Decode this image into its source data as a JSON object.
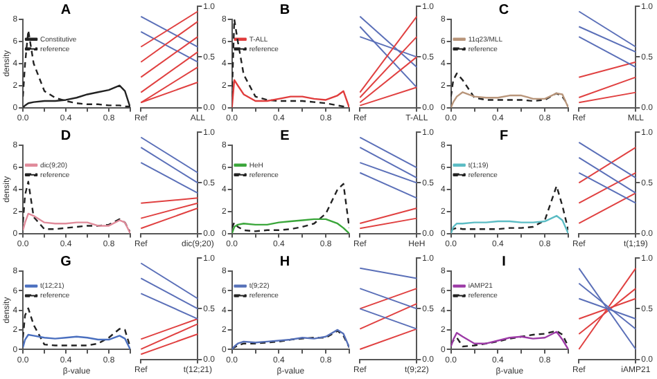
{
  "chart_data": [
    {
      "type": "line",
      "title": "A",
      "ylabel": "density",
      "x": [
        0,
        0.02,
        0.05,
        0.1,
        0.2,
        0.3,
        0.4,
        0.5,
        0.6,
        0.7,
        0.8,
        0.9,
        0.95,
        1
      ],
      "xlim": [
        0,
        1
      ],
      "xticks": [
        {
          "value": 0,
          "label": "0.0"
        },
        {
          "value": 0.2,
          "label": null
        },
        {
          "value": 0.4,
          "label": "0.4"
        },
        {
          "value": 0.6,
          "label": null
        },
        {
          "value": 0.8,
          "label": "0.8"
        },
        {
          "value": 1,
          "label": null
        }
      ],
      "ylim": [
        0,
        8
      ],
      "yticks": [
        0,
        2,
        4,
        6,
        8
      ],
      "grid": false,
      "legend": "top",
      "series": [
        {
          "name": "Constitutive",
          "color": "#222222",
          "line_style": "solid",
          "values": [
            0,
            0.2,
            0.4,
            0.5,
            0.6,
            0.6,
            0.7,
            0.9,
            1.2,
            1.4,
            1.6,
            2.0,
            1.5,
            0
          ]
        },
        {
          "name": "reference",
          "color": "#222222",
          "line_style": "dashed",
          "values": [
            1,
            4,
            7,
            4,
            1.5,
            0.9,
            0.6,
            0.4,
            0.3,
            0.3,
            0.2,
            0.2,
            0.1,
            0.1
          ]
        }
      ]
    },
    {
      "type": "line",
      "categories": [
        "Ref",
        "ALL"
      ],
      "y2lim": [
        0,
        1
      ],
      "y2ticks": [
        {
          "value": 0,
          "label": "0.0"
        },
        {
          "value": 0.5,
          "label": "0.5"
        },
        {
          "value": 1,
          "label": "1.0"
        }
      ],
      "grid": false,
      "series": [
        {
          "color": "#e04040",
          "axis": "y2",
          "values": [
            0.05,
            0.4
          ]
        },
        {
          "color": "#e04040",
          "axis": "y2",
          "values": [
            0.15,
            0.55
          ]
        },
        {
          "color": "#e04040",
          "axis": "y2",
          "values": [
            0.3,
            0.7
          ]
        },
        {
          "color": "#e04040",
          "axis": "y2",
          "values": [
            0.45,
            0.85
          ]
        },
        {
          "color": "#e04040",
          "axis": "y2",
          "values": [
            0.6,
            0.95
          ]
        },
        {
          "color": "#e04040",
          "axis": "y2",
          "values": [
            0.05,
            0.25
          ]
        },
        {
          "color": "#5a6fb8",
          "axis": "y2",
          "values": [
            0.9,
            0.6
          ]
        },
        {
          "color": "#5a6fb8",
          "axis": "y2",
          "values": [
            0.75,
            0.45
          ]
        }
      ]
    },
    {
      "type": "line",
      "title": "B",
      "x": [
        0,
        0.02,
        0.05,
        0.1,
        0.2,
        0.3,
        0.4,
        0.5,
        0.6,
        0.7,
        0.8,
        0.9,
        0.95,
        1
      ],
      "xlim": [
        0,
        1
      ],
      "xticks": [
        {
          "value": 0,
          "label": "0.0"
        },
        {
          "value": 0.2,
          "label": null
        },
        {
          "value": 0.4,
          "label": "0.4"
        },
        {
          "value": 0.6,
          "label": null
        },
        {
          "value": 0.8,
          "label": "0.8"
        },
        {
          "value": 1,
          "label": null
        }
      ],
      "ylim": [
        0,
        8
      ],
      "yticks": [
        0,
        2,
        4,
        6,
        8
      ],
      "grid": false,
      "legend": "top",
      "series": [
        {
          "name": "T-ALL",
          "color": "#e03c3c",
          "line_style": "solid",
          "values": [
            0,
            2.5,
            2.0,
            1.2,
            0.6,
            0.6,
            0.8,
            1.0,
            1.0,
            0.8,
            0.7,
            1.1,
            1.5,
            0
          ]
        },
        {
          "name": "reference",
          "color": "#222222",
          "line_style": "dashed",
          "values": [
            1,
            8,
            6,
            3,
            1,
            0.7,
            0.6,
            0.6,
            0.6,
            0.5,
            0.4,
            0.2,
            0.1,
            0.1
          ]
        }
      ]
    },
    {
      "type": "line",
      "categories": [
        "Ref",
        "T-ALL"
      ],
      "y2lim": [
        0,
        1
      ],
      "y2ticks": [
        {
          "value": 0,
          "label": "0.0"
        },
        {
          "value": 0.5,
          "label": "0.5"
        },
        {
          "value": 1,
          "label": "1.0"
        }
      ],
      "grid": false,
      "series": [
        {
          "color": "#e04040",
          "axis": "y2",
          "values": [
            0.05,
            0.5
          ]
        },
        {
          "color": "#e04040",
          "axis": "y2",
          "values": [
            0.1,
            0.7
          ]
        },
        {
          "color": "#e04040",
          "axis": "y2",
          "values": [
            0.15,
            0.9
          ]
        },
        {
          "color": "#e04040",
          "axis": "y2",
          "values": [
            0.02,
            0.2
          ]
        },
        {
          "color": "#5a6fb8",
          "axis": "y2",
          "values": [
            0.9,
            0.4
          ]
        },
        {
          "color": "#5a6fb8",
          "axis": "y2",
          "values": [
            0.8,
            0.2
          ]
        },
        {
          "color": "#5a6fb8",
          "axis": "y2",
          "values": [
            0.7,
            0.5
          ]
        }
      ]
    },
    {
      "type": "line",
      "title": "C",
      "x": [
        0,
        0.02,
        0.05,
        0.1,
        0.2,
        0.3,
        0.4,
        0.5,
        0.6,
        0.7,
        0.8,
        0.9,
        0.95,
        1
      ],
      "xlim": [
        0,
        1
      ],
      "xticks": [
        {
          "value": 0,
          "label": "0.0"
        },
        {
          "value": 0.2,
          "label": null
        },
        {
          "value": 0.4,
          "label": "0.4"
        },
        {
          "value": 0.6,
          "label": null
        },
        {
          "value": 0.8,
          "label": "0.8"
        },
        {
          "value": 1,
          "label": null
        }
      ],
      "ylim": [
        0,
        8
      ],
      "yticks": [
        0,
        2,
        4,
        6,
        8
      ],
      "grid": false,
      "legend": "top",
      "series": [
        {
          "name": "11q23/MLL",
          "color": "#b8957a",
          "line_style": "solid",
          "values": [
            0,
            0.5,
            1.0,
            1.4,
            1.0,
            0.9,
            0.9,
            1.1,
            1.1,
            0.8,
            0.8,
            1.3,
            1.2,
            0
          ]
        },
        {
          "name": "reference",
          "color": "#222222",
          "line_style": "dashed",
          "values": [
            1,
            2.5,
            3.1,
            2.5,
            0.9,
            0.7,
            0.7,
            0.7,
            0.7,
            0.6,
            0.7,
            1.3,
            1.0,
            0.2
          ]
        }
      ]
    },
    {
      "type": "line",
      "categories": [
        "Ref",
        "MLL"
      ],
      "y2lim": [
        0,
        1
      ],
      "y2ticks": [
        {
          "value": 0,
          "label": "0.0"
        },
        {
          "value": 0.5,
          "label": "0.5"
        },
        {
          "value": 1,
          "label": "1.0"
        }
      ],
      "grid": false,
      "series": [
        {
          "color": "#5a6fb8",
          "axis": "y2",
          "values": [
            0.95,
            0.6
          ]
        },
        {
          "color": "#5a6fb8",
          "axis": "y2",
          "values": [
            0.8,
            0.55
          ]
        },
        {
          "color": "#5a6fb8",
          "axis": "y2",
          "values": [
            0.7,
            0.4
          ]
        },
        {
          "color": "#e04040",
          "axis": "y2",
          "values": [
            0.05,
            0.15
          ]
        },
        {
          "color": "#e04040",
          "axis": "y2",
          "values": [
            0.1,
            0.3
          ]
        },
        {
          "color": "#e04040",
          "axis": "y2",
          "values": [
            0.3,
            0.45
          ]
        }
      ]
    },
    {
      "type": "line",
      "title": "D",
      "ylabel": "density",
      "x": [
        0,
        0.02,
        0.05,
        0.1,
        0.2,
        0.3,
        0.4,
        0.5,
        0.6,
        0.7,
        0.8,
        0.9,
        0.95,
        1
      ],
      "xlim": [
        0,
        1
      ],
      "xticks": [
        {
          "value": 0,
          "label": "0.0"
        },
        {
          "value": 0.2,
          "label": null
        },
        {
          "value": 0.4,
          "label": "0.4"
        },
        {
          "value": 0.6,
          "label": null
        },
        {
          "value": 0.8,
          "label": "0.8"
        },
        {
          "value": 1,
          "label": null
        }
      ],
      "ylim": [
        0,
        8
      ],
      "yticks": [
        0,
        2,
        4,
        6,
        8
      ],
      "grid": false,
      "legend": "top",
      "series": [
        {
          "name": "dic(9;20)",
          "color": "#e08a9a",
          "line_style": "solid",
          "values": [
            0.3,
            1.0,
            1.8,
            1.6,
            1.0,
            0.9,
            0.9,
            1.0,
            1.0,
            0.7,
            0.7,
            1.2,
            1.0,
            0
          ]
        },
        {
          "name": "reference",
          "color": "#222222",
          "line_style": "dashed",
          "values": [
            1,
            3.5,
            4.7,
            1.5,
            0.4,
            0.4,
            0.5,
            0.6,
            0.7,
            0.7,
            0.8,
            1.3,
            1.0,
            0.1
          ]
        }
      ]
    },
    {
      "type": "line",
      "categories": [
        "Ref",
        "dic(9;20)"
      ],
      "y2lim": [
        0,
        1
      ],
      "y2ticks": [
        {
          "value": 0,
          "label": "0.0"
        },
        {
          "value": 0.5,
          "label": "0.5"
        },
        {
          "value": 1,
          "label": "1.0"
        }
      ],
      "grid": false,
      "series": [
        {
          "color": "#5a6fb8",
          "axis": "y2",
          "values": [
            0.95,
            0.6
          ]
        },
        {
          "color": "#5a6fb8",
          "axis": "y2",
          "values": [
            0.85,
            0.5
          ]
        },
        {
          "color": "#5a6fb8",
          "axis": "y2",
          "values": [
            0.7,
            0.4
          ]
        },
        {
          "color": "#e04040",
          "axis": "y2",
          "values": [
            0.05,
            0.25
          ]
        },
        {
          "color": "#e04040",
          "axis": "y2",
          "values": [
            0.15,
            0.3
          ]
        },
        {
          "color": "#e04040",
          "axis": "y2",
          "values": [
            0.3,
            0.35
          ]
        }
      ]
    },
    {
      "type": "line",
      "title": "E",
      "x": [
        0,
        0.02,
        0.05,
        0.1,
        0.2,
        0.3,
        0.4,
        0.5,
        0.6,
        0.7,
        0.8,
        0.9,
        0.95,
        1
      ],
      "xlim": [
        0,
        1
      ],
      "xticks": [
        {
          "value": 0,
          "label": "0.0"
        },
        {
          "value": 0.2,
          "label": null
        },
        {
          "value": 0.4,
          "label": "0.4"
        },
        {
          "value": 0.6,
          "label": null
        },
        {
          "value": 0.8,
          "label": "0.8"
        },
        {
          "value": 1,
          "label": null
        }
      ],
      "ylim": [
        0,
        8
      ],
      "yticks": [
        0,
        2,
        4,
        6,
        8
      ],
      "grid": false,
      "legend": "top",
      "series": [
        {
          "name": "HeH",
          "color": "#3aa63a",
          "line_style": "solid",
          "values": [
            0,
            0.6,
            0.8,
            0.9,
            0.8,
            0.8,
            1.0,
            1.1,
            1.2,
            1.3,
            1.3,
            0.9,
            0.5,
            0
          ]
        },
        {
          "name": "reference",
          "color": "#222222",
          "line_style": "dashed",
          "values": [
            0.5,
            1.0,
            0.6,
            0.3,
            0.2,
            0.3,
            0.3,
            0.4,
            0.6,
            0.9,
            1.8,
            4.0,
            4.5,
            0.5
          ]
        }
      ]
    },
    {
      "type": "line",
      "categories": [
        "Ref",
        "HeH"
      ],
      "y2lim": [
        0,
        1
      ],
      "y2ticks": [
        {
          "value": 0,
          "label": "0.0"
        },
        {
          "value": 0.5,
          "label": "0.5"
        },
        {
          "value": 1,
          "label": "1.0"
        }
      ],
      "grid": false,
      "series": [
        {
          "color": "#5a6fb8",
          "axis": "y2",
          "values": [
            0.95,
            0.65
          ]
        },
        {
          "color": "#5a6fb8",
          "axis": "y2",
          "values": [
            0.85,
            0.55
          ]
        },
        {
          "color": "#5a6fb8",
          "axis": "y2",
          "values": [
            0.7,
            0.5
          ]
        },
        {
          "color": "#5a6fb8",
          "axis": "y2",
          "values": [
            0.6,
            0.35
          ]
        },
        {
          "color": "#e04040",
          "axis": "y2",
          "values": [
            0.05,
            0.15
          ]
        },
        {
          "color": "#e04040",
          "axis": "y2",
          "values": [
            0.1,
            0.25
          ]
        }
      ]
    },
    {
      "type": "line",
      "title": "F",
      "x": [
        0,
        0.02,
        0.05,
        0.1,
        0.2,
        0.3,
        0.4,
        0.5,
        0.6,
        0.7,
        0.8,
        0.9,
        0.95,
        1
      ],
      "xlim": [
        0,
        1
      ],
      "xticks": [
        {
          "value": 0,
          "label": "0.0"
        },
        {
          "value": 0.2,
          "label": null
        },
        {
          "value": 0.4,
          "label": "0.4"
        },
        {
          "value": 0.6,
          "label": null
        },
        {
          "value": 0.8,
          "label": "0.8"
        },
        {
          "value": 1,
          "label": null
        }
      ],
      "ylim": [
        0,
        8
      ],
      "yticks": [
        0,
        2,
        4,
        6,
        8
      ],
      "grid": false,
      "legend": "top",
      "series": [
        {
          "name": "t(1;19)",
          "color": "#5bbcc4",
          "line_style": "solid",
          "values": [
            0,
            0.6,
            0.9,
            0.9,
            1.0,
            1.0,
            1.1,
            1.1,
            1.0,
            1.0,
            1.1,
            1.6,
            1.2,
            0
          ]
        },
        {
          "name": "reference",
          "color": "#222222",
          "line_style": "dashed",
          "values": [
            0.3,
            0.4,
            0.5,
            0.4,
            0.4,
            0.4,
            0.4,
            0.5,
            0.5,
            0.6,
            1.2,
            4.3,
            2.5,
            0.3
          ]
        }
      ]
    },
    {
      "type": "line",
      "categories": [
        "Ref",
        "t(1;19)"
      ],
      "y2lim": [
        0,
        1
      ],
      "y2ticks": [
        {
          "value": 0,
          "label": "0.0"
        },
        {
          "value": 0.5,
          "label": "0.5"
        },
        {
          "value": 1,
          "label": "1.0"
        }
      ],
      "grid": false,
      "series": [
        {
          "color": "#5a6fb8",
          "axis": "y2",
          "values": [
            0.9,
            0.55
          ]
        },
        {
          "color": "#5a6fb8",
          "axis": "y2",
          "values": [
            0.75,
            0.4
          ]
        },
        {
          "color": "#5a6fb8",
          "axis": "y2",
          "values": [
            0.6,
            0.3
          ]
        },
        {
          "color": "#e04040",
          "axis": "y2",
          "values": [
            0.1,
            0.4
          ]
        },
        {
          "color": "#e04040",
          "axis": "y2",
          "values": [
            0.3,
            0.6
          ]
        },
        {
          "color": "#e04040",
          "axis": "y2",
          "values": [
            0.5,
            0.85
          ]
        }
      ]
    },
    {
      "type": "line",
      "title": "G",
      "ylabel": "density",
      "xlabel": "β-value",
      "x": [
        0,
        0.02,
        0.05,
        0.1,
        0.2,
        0.3,
        0.4,
        0.5,
        0.6,
        0.7,
        0.8,
        0.9,
        0.95,
        1
      ],
      "xlim": [
        0,
        1
      ],
      "xticks": [
        {
          "value": 0,
          "label": "0.0"
        },
        {
          "value": 0.2,
          "label": null
        },
        {
          "value": 0.4,
          "label": "0.4"
        },
        {
          "value": 0.6,
          "label": null
        },
        {
          "value": 0.8,
          "label": "0.8"
        },
        {
          "value": 1,
          "label": null
        }
      ],
      "ylim": [
        0,
        8
      ],
      "yticks": [
        0,
        2,
        4,
        6,
        8
      ],
      "grid": false,
      "legend": "top",
      "series": [
        {
          "name": "t(12;21)",
          "color": "#4a6fbf",
          "line_style": "solid",
          "values": [
            0.2,
            1.0,
            1.5,
            1.4,
            1.2,
            1.1,
            1.2,
            1.3,
            1.2,
            1.0,
            1.0,
            1.4,
            1.1,
            0
          ]
        },
        {
          "name": "reference",
          "color": "#222222",
          "line_style": "dashed",
          "values": [
            1.2,
            3.5,
            4.2,
            2.5,
            0.5,
            0.4,
            0.4,
            0.4,
            0.4,
            0.6,
            1.2,
            2.1,
            2.0,
            0.2
          ]
        }
      ]
    },
    {
      "type": "line",
      "categories": [
        "Ref",
        "t(12;21)"
      ],
      "y2lim": [
        0,
        1
      ],
      "y2ticks": [
        {
          "value": 0,
          "label": "0.0"
        },
        {
          "value": 0.5,
          "label": "0.5"
        },
        {
          "value": 1,
          "label": "1.0"
        }
      ],
      "grid": false,
      "series": [
        {
          "color": "#5a6fb8",
          "axis": "y2",
          "values": [
            0.95,
            0.6
          ]
        },
        {
          "color": "#5a6fb8",
          "axis": "y2",
          "values": [
            0.8,
            0.5
          ]
        },
        {
          "color": "#5a6fb8",
          "axis": "y2",
          "values": [
            0.65,
            0.4
          ]
        },
        {
          "color": "#e04040",
          "axis": "y2",
          "values": [
            0.05,
            0.25
          ]
        },
        {
          "color": "#e04040",
          "axis": "y2",
          "values": [
            0.1,
            0.35
          ]
        },
        {
          "color": "#e04040",
          "axis": "y2",
          "values": [
            0.2,
            0.4
          ]
        }
      ]
    },
    {
      "type": "line",
      "title": "H",
      "xlabel": "β-value",
      "x": [
        0,
        0.02,
        0.05,
        0.1,
        0.2,
        0.3,
        0.4,
        0.5,
        0.6,
        0.7,
        0.8,
        0.9,
        0.95,
        1
      ],
      "xlim": [
        0,
        1
      ],
      "xticks": [
        {
          "value": 0,
          "label": "0.0"
        },
        {
          "value": 0.2,
          "label": null
        },
        {
          "value": 0.4,
          "label": "0.4"
        },
        {
          "value": 0.6,
          "label": null
        },
        {
          "value": 0.8,
          "label": "0.8"
        },
        {
          "value": 1,
          "label": null
        }
      ],
      "ylim": [
        0,
        8
      ],
      "yticks": [
        0,
        2,
        4,
        6,
        8
      ],
      "grid": false,
      "legend": "top",
      "series": [
        {
          "name": "t(9;22)",
          "color": "#5570b8",
          "line_style": "solid",
          "values": [
            0,
            0.3,
            0.6,
            0.8,
            0.7,
            0.8,
            0.9,
            1.0,
            1.2,
            1.1,
            1.3,
            2.0,
            1.6,
            0.2
          ]
        },
        {
          "name": "reference",
          "color": "#222222",
          "line_style": "dashed",
          "values": [
            0.1,
            0.2,
            0.4,
            0.6,
            0.6,
            0.7,
            0.8,
            1.0,
            1.1,
            1.2,
            1.2,
            1.9,
            1.4,
            0.2
          ]
        }
      ]
    },
    {
      "type": "line",
      "categories": [
        "Ref",
        "t(9;22)"
      ],
      "y2lim": [
        0,
        1
      ],
      "y2ticks": [
        {
          "value": 0,
          "label": "0.0"
        },
        {
          "value": 0.5,
          "label": "0.5"
        },
        {
          "value": 1,
          "label": "1.0"
        }
      ],
      "grid": false,
      "series": [
        {
          "color": "#5a6fb8",
          "axis": "y2",
          "values": [
            0.9,
            0.8
          ]
        },
        {
          "color": "#5a6fb8",
          "axis": "y2",
          "values": [
            0.7,
            0.5
          ]
        },
        {
          "color": "#5a6fb8",
          "axis": "y2",
          "values": [
            0.5,
            0.3
          ]
        },
        {
          "color": "#e04040",
          "axis": "y2",
          "values": [
            0.1,
            0.3
          ]
        },
        {
          "color": "#e04040",
          "axis": "y2",
          "values": [
            0.3,
            0.55
          ]
        },
        {
          "color": "#e04040",
          "axis": "y2",
          "values": [
            0.5,
            0.7
          ]
        }
      ]
    },
    {
      "type": "line",
      "title": "I",
      "xlabel": "β-value",
      "x": [
        0,
        0.02,
        0.05,
        0.1,
        0.2,
        0.3,
        0.4,
        0.5,
        0.6,
        0.7,
        0.8,
        0.9,
        0.95,
        1
      ],
      "xlim": [
        0,
        1
      ],
      "xticks": [
        {
          "value": 0,
          "label": "0.0"
        },
        {
          "value": 0.2,
          "label": null
        },
        {
          "value": 0.4,
          "label": "0.4"
        },
        {
          "value": 0.6,
          "label": null
        },
        {
          "value": 0.8,
          "label": "0.8"
        },
        {
          "value": 1,
          "label": null
        }
      ],
      "ylim": [
        0,
        8
      ],
      "yticks": [
        0,
        2,
        4,
        6,
        8
      ],
      "grid": false,
      "legend": "top",
      "series": [
        {
          "name": "iAMP21",
          "color": "#9c3aa6",
          "line_style": "solid",
          "values": [
            0.3,
            1.0,
            1.7,
            1.3,
            0.6,
            0.6,
            0.9,
            1.2,
            1.3,
            1.1,
            1.2,
            1.8,
            1.0,
            0
          ]
        },
        {
          "name": "reference",
          "color": "#222222",
          "line_style": "dashed",
          "values": [
            0.5,
            0.9,
            1.2,
            0.3,
            0.4,
            0.6,
            0.8,
            1.1,
            1.3,
            1.5,
            1.6,
            1.9,
            1.5,
            0.3
          ]
        }
      ]
    },
    {
      "type": "line",
      "categories": [
        "Ref",
        "iAMP21"
      ],
      "y2lim": [
        0,
        1
      ],
      "y2ticks": [
        {
          "value": 0,
          "label": "0.0"
        },
        {
          "value": 0.5,
          "label": "0.5"
        },
        {
          "value": 1,
          "label": "1.0"
        }
      ],
      "grid": false,
      "series": [
        {
          "color": "#5a6fb8",
          "axis": "y2",
          "values": [
            0.9,
            0.1
          ]
        },
        {
          "color": "#5a6fb8",
          "axis": "y2",
          "values": [
            0.75,
            0.3
          ]
        },
        {
          "color": "#5a6fb8",
          "axis": "y2",
          "values": [
            0.6,
            0.4
          ]
        },
        {
          "color": "#e04040",
          "axis": "y2",
          "values": [
            0.1,
            0.9
          ]
        },
        {
          "color": "#e04040",
          "axis": "y2",
          "values": [
            0.25,
            0.7
          ]
        },
        {
          "color": "#e04040",
          "axis": "y2",
          "values": [
            0.4,
            0.6
          ]
        }
      ]
    }
  ]
}
